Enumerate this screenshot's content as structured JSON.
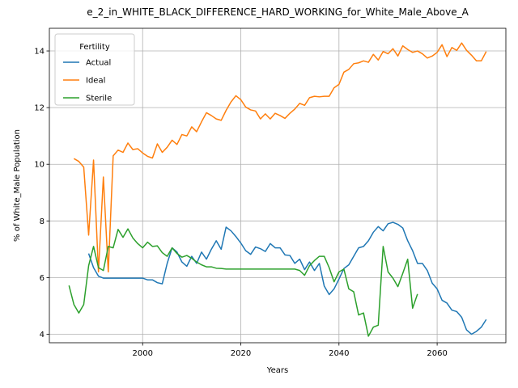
{
  "chart_data": {
    "type": "line",
    "title": "e_2_in_WHITE_BLACK_DIFFERENCE_HARD_WORKING_for_White_Male_Above_A",
    "xlabel": "Years",
    "ylabel": "% of White_Male Population",
    "xlim": [
      1981,
      2074
    ],
    "ylim": [
      3.7,
      14.8
    ],
    "xticks": [
      2000,
      2020,
      2040,
      2060
    ],
    "yticks": [
      4,
      6,
      8,
      10,
      12,
      14
    ],
    "grid": true,
    "legend": {
      "title": "Fertility",
      "placement": "top-left"
    },
    "series": [
      {
        "name": "Actual",
        "color": "#1f77b4",
        "points": [
          [
            1989,
            6.85
          ],
          [
            1990,
            6.35
          ],
          [
            1991,
            6.05
          ],
          [
            1992,
            5.98
          ],
          [
            1993,
            5.98
          ],
          [
            1994,
            5.98
          ],
          [
            1995,
            5.98
          ],
          [
            1996,
            5.98
          ],
          [
            1997,
            5.98
          ],
          [
            1998,
            5.98
          ],
          [
            1999,
            5.98
          ],
          [
            2000,
            5.98
          ],
          [
            2001,
            5.92
          ],
          [
            2002,
            5.92
          ],
          [
            2003,
            5.82
          ],
          [
            2004,
            5.78
          ],
          [
            2005,
            6.5
          ],
          [
            2006,
            7.05
          ],
          [
            2007,
            6.9
          ],
          [
            2008,
            6.55
          ],
          [
            2009,
            6.4
          ],
          [
            2010,
            6.75
          ],
          [
            2011,
            6.5
          ],
          [
            2012,
            6.9
          ],
          [
            2013,
            6.65
          ],
          [
            2014,
            7.0
          ],
          [
            2015,
            7.3
          ],
          [
            2016,
            7.0
          ],
          [
            2017,
            7.78
          ],
          [
            2018,
            7.65
          ],
          [
            2019,
            7.45
          ],
          [
            2020,
            7.22
          ],
          [
            2021,
            6.95
          ],
          [
            2022,
            6.82
          ],
          [
            2023,
            7.08
          ],
          [
            2024,
            7.02
          ],
          [
            2025,
            6.92
          ],
          [
            2026,
            7.2
          ],
          [
            2027,
            7.05
          ],
          [
            2028,
            7.05
          ],
          [
            2029,
            6.8
          ],
          [
            2030,
            6.78
          ],
          [
            2031,
            6.5
          ],
          [
            2032,
            6.65
          ],
          [
            2033,
            6.28
          ],
          [
            2034,
            6.55
          ],
          [
            2035,
            6.25
          ],
          [
            2036,
            6.5
          ],
          [
            2037,
            5.7
          ],
          [
            2038,
            5.4
          ],
          [
            2039,
            5.6
          ],
          [
            2040,
            5.95
          ],
          [
            2041,
            6.32
          ],
          [
            2042,
            6.45
          ],
          [
            2043,
            6.75
          ],
          [
            2044,
            7.05
          ],
          [
            2045,
            7.1
          ],
          [
            2046,
            7.3
          ],
          [
            2047,
            7.6
          ],
          [
            2048,
            7.8
          ],
          [
            2049,
            7.65
          ],
          [
            2050,
            7.9
          ],
          [
            2051,
            7.95
          ],
          [
            2052,
            7.88
          ],
          [
            2053,
            7.75
          ],
          [
            2054,
            7.3
          ],
          [
            2055,
            6.95
          ],
          [
            2056,
            6.5
          ],
          [
            2057,
            6.5
          ],
          [
            2058,
            6.25
          ],
          [
            2059,
            5.8
          ],
          [
            2060,
            5.6
          ],
          [
            2061,
            5.2
          ],
          [
            2062,
            5.1
          ],
          [
            2063,
            4.85
          ],
          [
            2064,
            4.8
          ],
          [
            2065,
            4.6
          ],
          [
            2066,
            4.15
          ],
          [
            2067,
            4.0
          ],
          [
            2068,
            4.1
          ],
          [
            2069,
            4.25
          ],
          [
            2070,
            4.52
          ]
        ]
      },
      {
        "name": "Ideal",
        "color": "#ff7f0e",
        "points": [
          [
            1986,
            10.2
          ],
          [
            1987,
            10.1
          ],
          [
            1988,
            9.9
          ],
          [
            1989,
            7.5
          ],
          [
            1990,
            10.15
          ],
          [
            1991,
            6.2
          ],
          [
            1992,
            9.55
          ],
          [
            1993,
            6.2
          ],
          [
            1994,
            10.3
          ],
          [
            1995,
            10.5
          ],
          [
            1996,
            10.42
          ],
          [
            1997,
            10.75
          ],
          [
            1998,
            10.52
          ],
          [
            1999,
            10.55
          ],
          [
            2000,
            10.4
          ],
          [
            2001,
            10.28
          ],
          [
            2002,
            10.22
          ],
          [
            2003,
            10.72
          ],
          [
            2004,
            10.42
          ],
          [
            2005,
            10.6
          ],
          [
            2006,
            10.85
          ],
          [
            2007,
            10.7
          ],
          [
            2008,
            11.05
          ],
          [
            2009,
            11.0
          ],
          [
            2010,
            11.32
          ],
          [
            2011,
            11.15
          ],
          [
            2012,
            11.5
          ],
          [
            2013,
            11.82
          ],
          [
            2014,
            11.72
          ],
          [
            2015,
            11.6
          ],
          [
            2016,
            11.55
          ],
          [
            2017,
            11.9
          ],
          [
            2018,
            12.2
          ],
          [
            2019,
            12.42
          ],
          [
            2020,
            12.28
          ],
          [
            2021,
            12.02
          ],
          [
            2022,
            11.92
          ],
          [
            2023,
            11.88
          ],
          [
            2024,
            11.6
          ],
          [
            2025,
            11.78
          ],
          [
            2026,
            11.6
          ],
          [
            2027,
            11.8
          ],
          [
            2028,
            11.72
          ],
          [
            2029,
            11.62
          ],
          [
            2030,
            11.8
          ],
          [
            2031,
            11.95
          ],
          [
            2032,
            12.15
          ],
          [
            2033,
            12.08
          ],
          [
            2034,
            12.35
          ],
          [
            2035,
            12.4
          ],
          [
            2036,
            12.38
          ],
          [
            2037,
            12.4
          ],
          [
            2038,
            12.4
          ],
          [
            2039,
            12.7
          ],
          [
            2040,
            12.82
          ],
          [
            2041,
            13.25
          ],
          [
            2042,
            13.35
          ],
          [
            2043,
            13.55
          ],
          [
            2044,
            13.58
          ],
          [
            2045,
            13.65
          ],
          [
            2046,
            13.6
          ],
          [
            2047,
            13.88
          ],
          [
            2048,
            13.68
          ],
          [
            2049,
            13.98
          ],
          [
            2050,
            13.9
          ],
          [
            2051,
            14.08
          ],
          [
            2052,
            13.82
          ],
          [
            2053,
            14.18
          ],
          [
            2054,
            14.05
          ],
          [
            2055,
            13.95
          ],
          [
            2056,
            14.0
          ],
          [
            2057,
            13.9
          ],
          [
            2058,
            13.75
          ],
          [
            2059,
            13.82
          ],
          [
            2060,
            13.95
          ],
          [
            2061,
            14.22
          ],
          [
            2062,
            13.8
          ],
          [
            2063,
            14.12
          ],
          [
            2064,
            14.02
          ],
          [
            2065,
            14.28
          ],
          [
            2066,
            14.02
          ],
          [
            2067,
            13.85
          ],
          [
            2068,
            13.65
          ],
          [
            2069,
            13.65
          ],
          [
            2070,
            13.98
          ]
        ]
      },
      {
        "name": "Sterile",
        "color": "#2ca02c",
        "points": [
          [
            1985,
            5.72
          ],
          [
            1986,
            5.05
          ],
          [
            1987,
            4.75
          ],
          [
            1988,
            5.05
          ],
          [
            1989,
            6.42
          ],
          [
            1990,
            7.1
          ],
          [
            1991,
            6.35
          ],
          [
            1992,
            6.25
          ],
          [
            1993,
            7.1
          ],
          [
            1994,
            7.05
          ],
          [
            1995,
            7.7
          ],
          [
            1996,
            7.42
          ],
          [
            1997,
            7.72
          ],
          [
            1998,
            7.4
          ],
          [
            1999,
            7.2
          ],
          [
            2000,
            7.05
          ],
          [
            2001,
            7.25
          ],
          [
            2002,
            7.1
          ],
          [
            2003,
            7.12
          ],
          [
            2004,
            6.88
          ],
          [
            2005,
            6.75
          ],
          [
            2006,
            7.05
          ],
          [
            2007,
            6.85
          ],
          [
            2008,
            6.72
          ],
          [
            2009,
            6.78
          ],
          [
            2010,
            6.68
          ],
          [
            2011,
            6.55
          ],
          [
            2012,
            6.45
          ],
          [
            2013,
            6.38
          ],
          [
            2014,
            6.38
          ],
          [
            2015,
            6.33
          ],
          [
            2016,
            6.32
          ],
          [
            2017,
            6.3
          ],
          [
            2018,
            6.3
          ],
          [
            2019,
            6.3
          ],
          [
            2020,
            6.3
          ],
          [
            2021,
            6.3
          ],
          [
            2022,
            6.3
          ],
          [
            2023,
            6.3
          ],
          [
            2024,
            6.3
          ],
          [
            2025,
            6.3
          ],
          [
            2026,
            6.3
          ],
          [
            2027,
            6.3
          ],
          [
            2028,
            6.3
          ],
          [
            2029,
            6.3
          ],
          [
            2030,
            6.3
          ],
          [
            2031,
            6.3
          ],
          [
            2032,
            6.25
          ],
          [
            2033,
            6.08
          ],
          [
            2034,
            6.42
          ],
          [
            2035,
            6.6
          ],
          [
            2036,
            6.75
          ],
          [
            2037,
            6.75
          ],
          [
            2038,
            6.35
          ],
          [
            2039,
            5.85
          ],
          [
            2040,
            6.2
          ],
          [
            2041,
            6.3
          ],
          [
            2042,
            5.6
          ],
          [
            2043,
            5.5
          ],
          [
            2044,
            4.68
          ],
          [
            2045,
            4.75
          ],
          [
            2046,
            3.93
          ],
          [
            2047,
            4.25
          ],
          [
            2048,
            4.32
          ],
          [
            2049,
            7.1
          ],
          [
            2050,
            6.2
          ],
          [
            2051,
            5.98
          ],
          [
            2052,
            5.68
          ],
          [
            2053,
            6.15
          ],
          [
            2054,
            6.65
          ],
          [
            2055,
            4.92
          ],
          [
            2056,
            5.42
          ]
        ]
      }
    ]
  }
}
